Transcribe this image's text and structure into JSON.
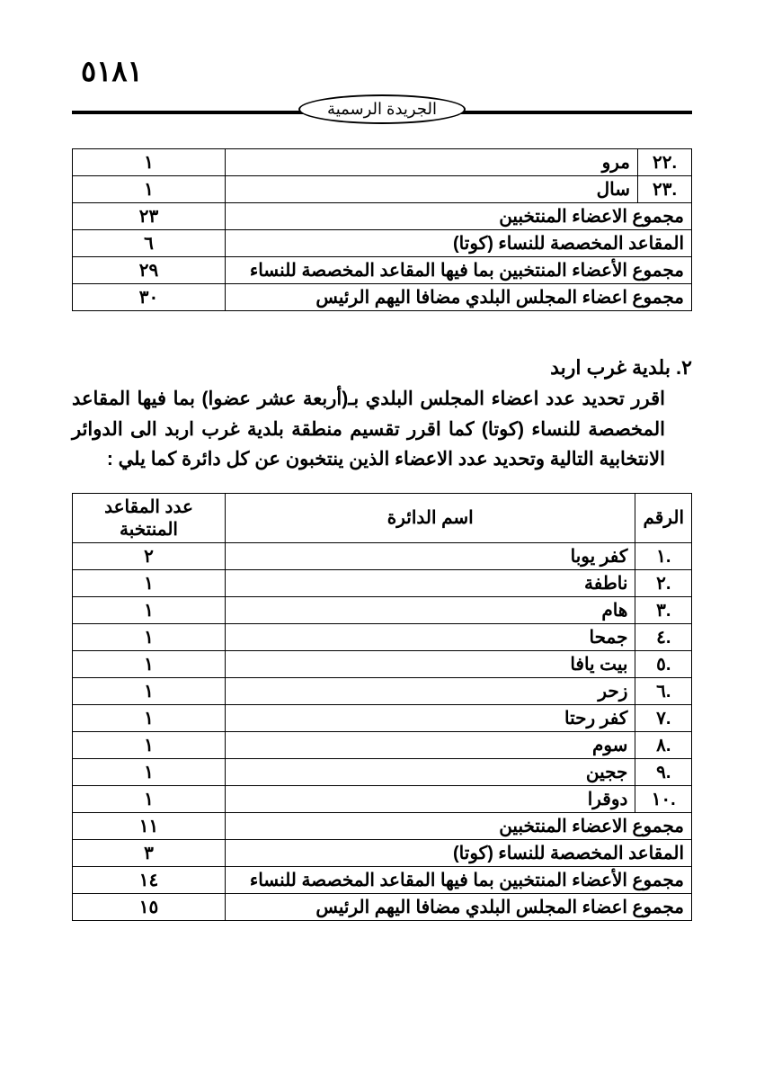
{
  "page_number": "٥١٨١",
  "header_label": "الجريدة الرسمية",
  "table1": {
    "rows": [
      {
        "num": ".٢٢",
        "name": "مرو",
        "seats": "١"
      },
      {
        "num": ".٢٣",
        "name": "سال",
        "seats": "١"
      }
    ],
    "summary": [
      {
        "label": "مجموع الاعضاء المنتخبين",
        "value": "٢٣"
      },
      {
        "label": "المقاعد المخصصة للنساء (كوتا)",
        "value": "٦"
      },
      {
        "label": "مجموع الأعضاء المنتخبين بما فيها المقاعد المخصصة للنساء",
        "value": "٢٩"
      },
      {
        "label": "مجموع اعضاء المجلس البلدي مضافا اليهم الرئيس",
        "value": "٣٠"
      }
    ]
  },
  "section2": {
    "title": "٢. بلدية غرب اربد",
    "body": "اقرر تحديد عدد اعضاء المجلس البلدي بـ(أربعة عشر عضوا) بما فيها المقاعد المخصصة للنساء (كوتا) كما اقرر تقسيم منطقة بلدية غرب اربد الى الدوائر الانتخابية التالية وتحديد عدد الاعضاء الذين ينتخبون عن كل دائرة كما يلي :"
  },
  "table2": {
    "headers": {
      "num": "الرقم",
      "name": "اسم الدائرة",
      "seats": "عدد المقاعد المنتخبة"
    },
    "rows": [
      {
        "num": ".١",
        "name": "كفر يوبا",
        "seats": "٢"
      },
      {
        "num": ".٢",
        "name": "ناطفة",
        "seats": "١"
      },
      {
        "num": ".٣",
        "name": "هام",
        "seats": "١"
      },
      {
        "num": ".٤",
        "name": "جمحا",
        "seats": "١"
      },
      {
        "num": ".٥",
        "name": "بيت يافا",
        "seats": "١"
      },
      {
        "num": ".٦",
        "name": "زحر",
        "seats": "١"
      },
      {
        "num": ".٧",
        "name": "كفر رحتا",
        "seats": "١"
      },
      {
        "num": ".٨",
        "name": "سوم",
        "seats": "١"
      },
      {
        "num": ".٩",
        "name": "ججين",
        "seats": "١"
      },
      {
        "num": ".١٠",
        "name": "دوقرا",
        "seats": "١"
      }
    ],
    "summary": [
      {
        "label": "مجموع الاعضاء المنتخبين",
        "value": "١١"
      },
      {
        "label": "المقاعد المخصصة للنساء (كوتا)",
        "value": "٣"
      },
      {
        "label": "مجموع الأعضاء المنتخبين بما فيها المقاعد المخصصة للنساء",
        "value": "١٤"
      },
      {
        "label": "مجموع اعضاء المجلس البلدي مضافا اليهم الرئيس",
        "value": "١٥"
      }
    ]
  }
}
